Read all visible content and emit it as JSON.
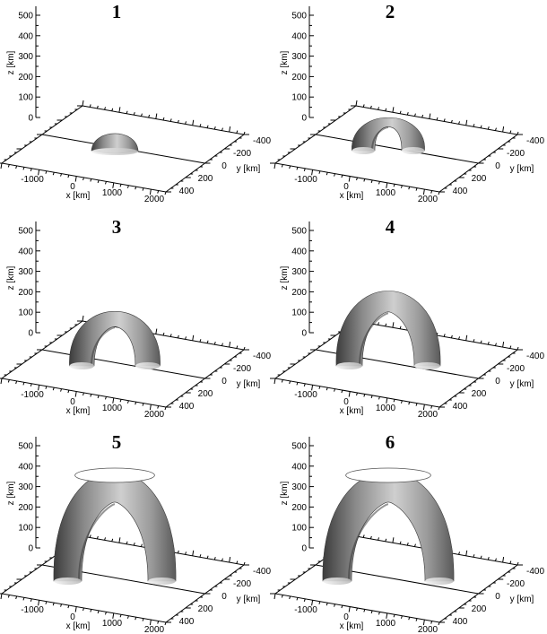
{
  "figure": {
    "panels": [
      {
        "label": "1",
        "height_km": 120,
        "spread": 0.0
      },
      {
        "label": "2",
        "height_km": 125,
        "spread": 0.35
      },
      {
        "label": "3",
        "height_km": 230,
        "spread": 0.55
      },
      {
        "label": "4",
        "height_km": 330,
        "spread": 0.7
      },
      {
        "label": "5",
        "height_km": 500,
        "spread": 0.9
      },
      {
        "label": "6",
        "height_km": 500,
        "spread": 1.0
      }
    ],
    "axes": {
      "z_label": "z [km]",
      "x_label": "x [km]",
      "y_label": "y [km]",
      "z_ticks": [
        "500",
        "400",
        "300",
        "200",
        "100",
        "0"
      ],
      "x_ticks": [
        "-1000",
        "0",
        "1000",
        "2000"
      ],
      "y_ticks": [
        "-400",
        "-200",
        "0",
        "200",
        "400"
      ]
    },
    "colors": {
      "ink": "#000000",
      "tube_light": "#d9d9d9",
      "tube_mid": "#9a9a9a",
      "tube_dark": "#4a4a4a"
    }
  }
}
